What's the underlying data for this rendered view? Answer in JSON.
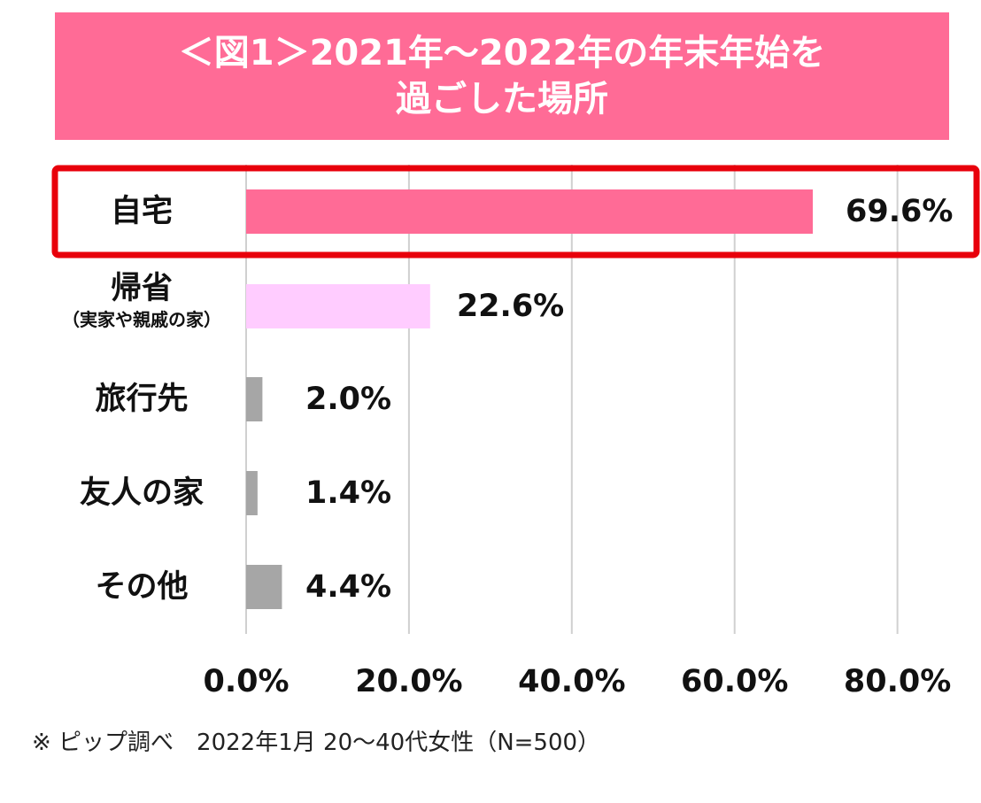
{
  "chart_data": {
    "type": "bar",
    "orientation": "horizontal",
    "title": "＜図1＞2021年～2022年の年末年始を過ごした場所",
    "title_lines": [
      "＜図1＞2021年～2022年の年末年始を",
      "過ごした場所"
    ],
    "categories": [
      {
        "label": "自宅",
        "sub": ""
      },
      {
        "label": "帰省",
        "sub": "（実家や親戚の家）"
      },
      {
        "label": "旅行先",
        "sub": ""
      },
      {
        "label": "友人の家",
        "sub": ""
      },
      {
        "label": "その他",
        "sub": ""
      }
    ],
    "values": [
      69.6,
      22.6,
      2.0,
      1.4,
      4.4
    ],
    "value_labels": [
      "69.6%",
      "22.6%",
      "2.0%",
      "1.4%",
      "4.4%"
    ],
    "bar_colors": [
      "#ff6b96",
      "#ffccff",
      "#a6a6a6",
      "#a6a6a6",
      "#a6a6a6"
    ],
    "highlight_index": 0,
    "highlight_color": "#e8000b",
    "xlim": [
      0,
      87
    ],
    "xticks": [
      0,
      20,
      40,
      60,
      80
    ],
    "xtick_labels": [
      "0.0%",
      "20.0%",
      "40.0%",
      "60.0%",
      "80.0%"
    ],
    "grid": true,
    "legend": "none",
    "footnote": "※ ピップ調べ　2022年1月  20～40代女性（N=500）"
  }
}
